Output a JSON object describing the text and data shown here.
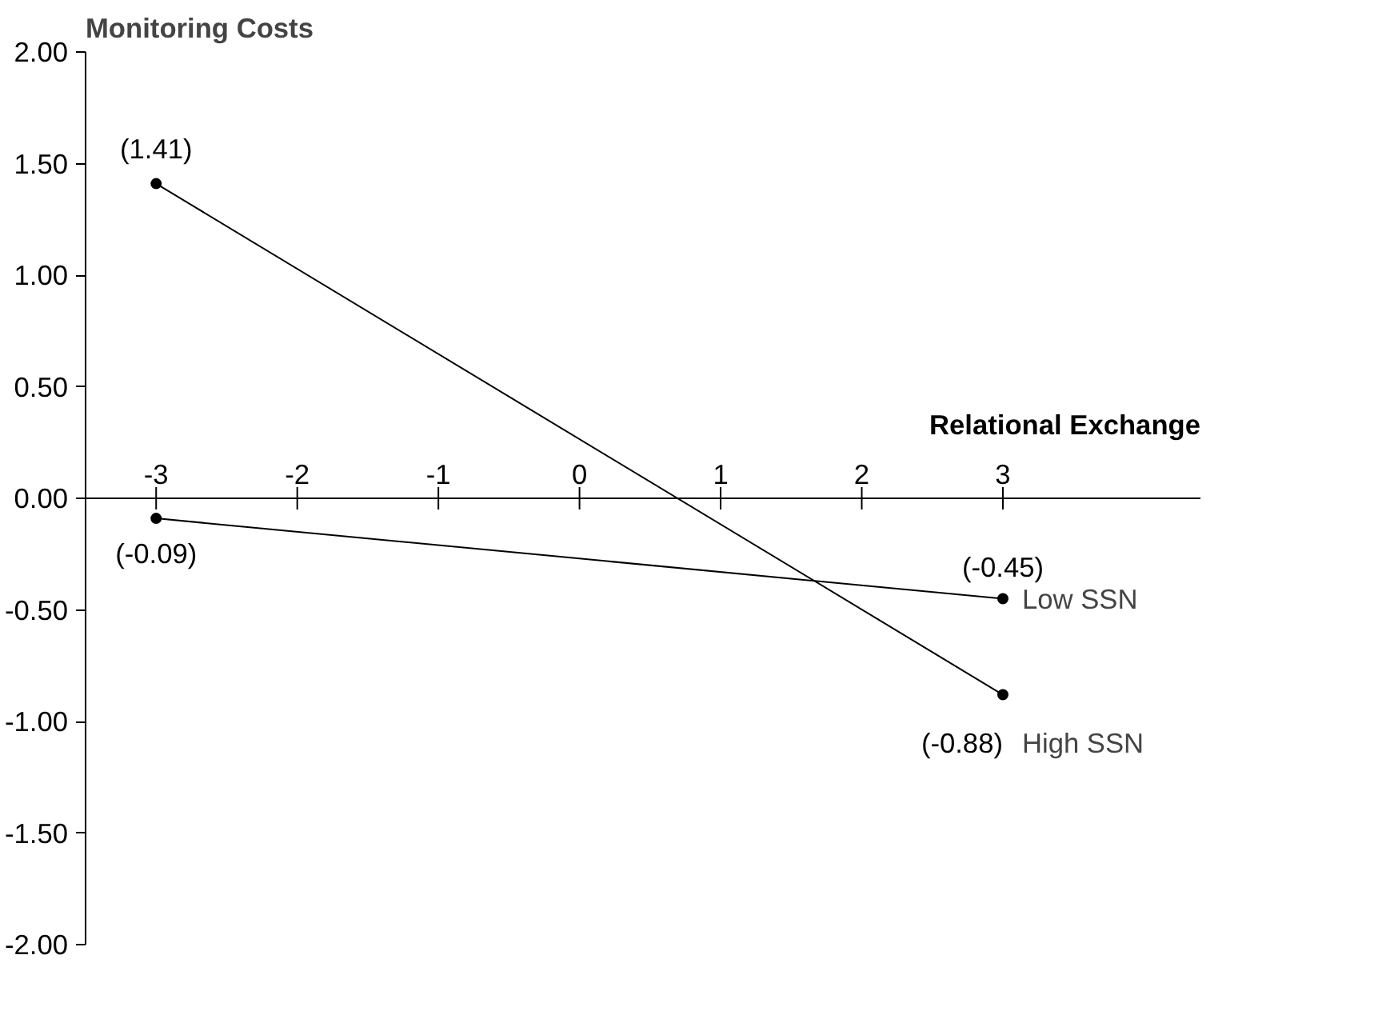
{
  "chart_data": {
    "type": "line",
    "xlabel": "Relational Exchange",
    "ylabel": "Monitoring Costs",
    "x": [
      -3,
      3
    ],
    "series": [
      {
        "name": "High SSN",
        "color": "#000000",
        "values": [
          1.41,
          -0.88
        ],
        "value_labels": [
          "(1.41)",
          "(-0.88)"
        ]
      },
      {
        "name": "Low SSN",
        "color": "#000000",
        "values": [
          -0.09,
          -0.45
        ],
        "value_labels": [
          "(-0.09)",
          "(-0.45)"
        ]
      }
    ],
    "xlim": [
      -3.5,
      4.4
    ],
    "xticks": [
      -3,
      -2,
      -1,
      0,
      1,
      2,
      3
    ],
    "ylim": [
      -2,
      2
    ],
    "yticks": [
      {
        "value": 2,
        "label": "2.00"
      },
      {
        "value": 1.5,
        "label": "1.50"
      },
      {
        "value": 1,
        "label": "1.00"
      },
      {
        "value": 0.5,
        "label": "0.50"
      },
      {
        "value": 0,
        "label": "0.00"
      },
      {
        "value": -0.5,
        "label": "-0.50"
      },
      {
        "value": -1,
        "label": "-1.00"
      },
      {
        "value": -1.5,
        "label": "-1.50"
      },
      {
        "value": -2,
        "label": "-2.00"
      }
    ],
    "marker": "circle",
    "line_style": "solid",
    "grid": false
  }
}
